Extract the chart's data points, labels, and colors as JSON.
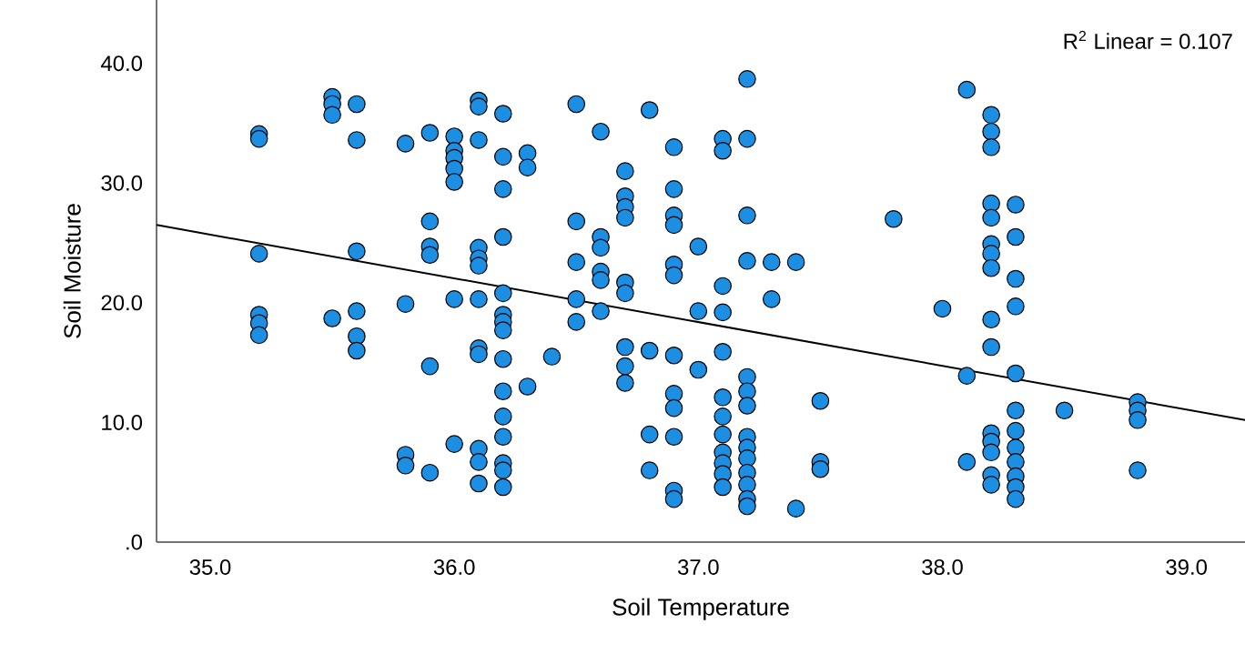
{
  "chart_data": {
    "type": "scatter",
    "xlabel": "Soil Temperature",
    "ylabel": "Soil Moisture",
    "xlim": [
      34.78,
      39.24
    ],
    "ylim": [
      0,
      45.3
    ],
    "xticks": [
      {
        "value": 35,
        "label": "35.0"
      },
      {
        "value": 36,
        "label": "36.0"
      },
      {
        "value": 37,
        "label": "37.0"
      },
      {
        "value": 38,
        "label": "38.0"
      },
      {
        "value": 39,
        "label": "39.0"
      }
    ],
    "yticks": [
      {
        "value": 0,
        "label": ".0"
      },
      {
        "value": 10,
        "label": "10.0"
      },
      {
        "value": 20,
        "label": "20.0"
      },
      {
        "value": 30,
        "label": "30.0"
      },
      {
        "value": 40,
        "label": "40.0"
      }
    ],
    "grid": false,
    "annotations": [
      "R$^{2}$ Linear = 0.107"
    ],
    "series": [
      {
        "marker": "circle",
        "color": "#1c8fe3",
        "x": [
          35.2,
          35.2,
          35.2,
          35.2,
          35.2,
          35.2,
          35.5,
          35.5,
          35.5,
          35.5,
          35.6,
          35.6,
          35.6,
          35.6,
          35.6,
          35.6,
          35.8,
          35.8,
          35.8,
          35.8,
          35.9,
          35.9,
          35.9,
          35.9,
          35.9,
          35.9,
          36.0,
          36.0,
          36.0,
          36.0,
          36.0,
          36.0,
          36.0,
          36.1,
          36.1,
          36.1,
          36.1,
          36.1,
          36.1,
          36.1,
          36.1,
          36.1,
          36.1,
          36.1,
          36.1,
          36.2,
          36.2,
          36.2,
          36.2,
          36.2,
          36.2,
          36.2,
          36.2,
          36.2,
          36.2,
          36.2,
          36.2,
          36.2,
          36.2,
          36.2,
          36.3,
          36.3,
          36.3,
          36.4,
          36.5,
          36.5,
          36.5,
          36.5,
          36.5,
          36.6,
          36.6,
          36.6,
          36.6,
          36.6,
          36.6,
          36.7,
          36.7,
          36.7,
          36.7,
          36.7,
          36.7,
          36.7,
          36.7,
          36.7,
          36.8,
          36.8,
          36.8,
          36.8,
          36.9,
          36.9,
          36.9,
          36.9,
          36.9,
          36.9,
          36.9,
          36.9,
          36.9,
          36.9,
          36.9,
          36.9,
          37.0,
          37.0,
          37.0,
          37.1,
          37.1,
          37.1,
          37.1,
          37.1,
          37.1,
          37.1,
          37.1,
          37.1,
          37.1,
          37.1,
          37.1,
          37.2,
          37.2,
          37.2,
          37.2,
          37.2,
          37.2,
          37.2,
          37.2,
          37.2,
          37.2,
          37.2,
          37.2,
          37.2,
          37.2,
          37.3,
          37.3,
          37.4,
          37.4,
          37.5,
          37.5,
          37.5,
          37.8,
          38.0,
          38.1,
          38.1,
          38.1,
          38.2,
          38.2,
          38.2,
          38.2,
          38.2,
          38.2,
          38.2,
          38.2,
          38.2,
          38.2,
          38.2,
          38.2,
          38.2,
          38.2,
          38.2,
          38.3,
          38.3,
          38.3,
          38.3,
          38.3,
          38.3,
          38.3,
          38.3,
          38.3,
          38.3,
          38.3,
          38.3,
          38.5,
          38.8,
          38.8,
          38.8,
          38.8
        ],
        "values": [
          34.1,
          33.7,
          24.1,
          19.0,
          18.3,
          17.3,
          37.2,
          36.6,
          35.7,
          18.7,
          36.6,
          33.6,
          24.3,
          19.3,
          17.2,
          16.0,
          33.3,
          19.9,
          7.3,
          6.4,
          34.2,
          26.8,
          24.7,
          24.0,
          14.7,
          5.8,
          33.9,
          32.7,
          32.1,
          31.2,
          30.1,
          20.3,
          8.2,
          36.9,
          36.4,
          33.6,
          24.6,
          23.7,
          23.1,
          20.3,
          16.2,
          15.7,
          7.8,
          6.7,
          4.9,
          35.8,
          32.2,
          29.5,
          25.5,
          20.8,
          19.0,
          18.4,
          17.7,
          15.3,
          12.6,
          10.5,
          8.8,
          6.6,
          6.0,
          4.6,
          32.5,
          31.3,
          13.0,
          15.5,
          36.6,
          26.8,
          23.4,
          20.3,
          18.4,
          34.3,
          25.5,
          24.6,
          22.6,
          21.9,
          19.3,
          31.0,
          28.9,
          28.0,
          27.1,
          21.7,
          20.8,
          16.3,
          14.7,
          13.3,
          36.1,
          16.0,
          9.0,
          6.0,
          33.0,
          29.5,
          27.3,
          26.5,
          23.2,
          22.3,
          15.6,
          12.4,
          11.2,
          8.8,
          4.3,
          3.6,
          24.7,
          19.3,
          14.4,
          33.7,
          32.7,
          21.4,
          19.2,
          15.9,
          12.1,
          10.5,
          9.0,
          7.5,
          6.6,
          5.7,
          4.6,
          38.7,
          33.7,
          27.3,
          23.5,
          13.8,
          12.6,
          11.4,
          8.8,
          7.9,
          7.0,
          5.8,
          4.8,
          3.6,
          3.0,
          23.4,
          20.3,
          23.4,
          2.8,
          11.8,
          6.7,
          6.1,
          27.0,
          19.5,
          37.8,
          13.9,
          6.7,
          35.7,
          34.3,
          33.0,
          28.3,
          27.1,
          24.9,
          24.1,
          22.9,
          18.6,
          16.3,
          9.1,
          8.4,
          7.5,
          5.6,
          4.8,
          28.2,
          25.5,
          22.0,
          19.7,
          14.1,
          11.0,
          9.3,
          7.9,
          6.7,
          5.5,
          4.6,
          3.6,
          11.0,
          11.7,
          11.0,
          10.2,
          6.0
        ]
      },
      {
        "type": "line",
        "marker": "none",
        "color": "#000000",
        "x": [
          34.78,
          39.24
        ],
        "values": [
          26.5,
          10.2
        ]
      }
    ]
  }
}
